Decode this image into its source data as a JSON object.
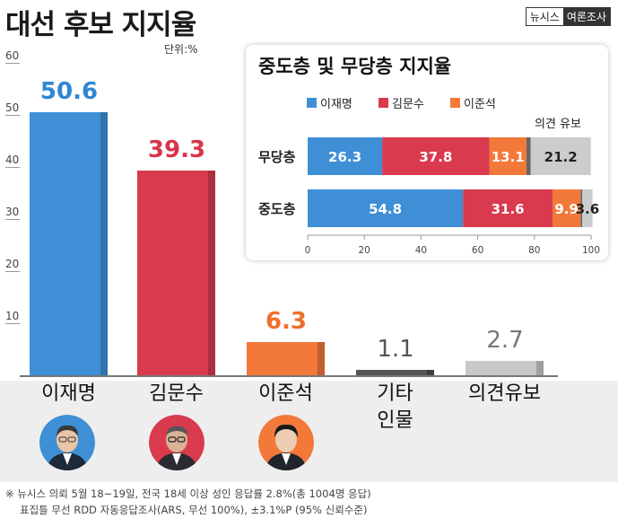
{
  "header": {
    "title": "대선 후보 지지율",
    "logo_left": "뉴시스",
    "logo_right": "여론조사",
    "unit": "단위:%"
  },
  "chart_data": [
    {
      "type": "bar",
      "categories": [
        "이재명",
        "김문수",
        "이준석",
        "기타 인물",
        "의견유보"
      ],
      "category_lines": [
        [
          "이재명"
        ],
        [
          "김문수"
        ],
        [
          "이준석"
        ],
        [
          "기타",
          "인물"
        ],
        [
          "의견유보"
        ]
      ],
      "values": [
        50.6,
        39.3,
        6.3,
        1.1,
        2.7
      ],
      "value_labels": [
        "50.6",
        "39.3",
        "6.3",
        "1.1",
        "2.7"
      ],
      "colors": [
        "#3e8fd6",
        "#d93a4e",
        "#f2793a",
        "#555555",
        "#c8c8c8"
      ],
      "label_colors": [
        "#2f86d2",
        "#d7364a",
        "#ef6f2e",
        "#555555",
        "#777777"
      ],
      "yticks": [
        10,
        20,
        30,
        40,
        50,
        60
      ],
      "ylim": [
        0,
        60
      ],
      "grid": false
    },
    {
      "type": "bar",
      "orientation": "horizontal",
      "stacked": true,
      "title": "중도층 및 무당층 지지율",
      "categories": [
        "무당층",
        "중도층"
      ],
      "series": [
        {
          "name": "이재명",
          "color": "#3e8fd6",
          "values": [
            26.3,
            54.8
          ]
        },
        {
          "name": "김문수",
          "color": "#d93a4e",
          "values": [
            37.8,
            31.6
          ]
        },
        {
          "name": "이준석",
          "color": "#f2793a",
          "values": [
            13.1,
            9.9
          ]
        },
        {
          "name": "",
          "color": "#666666",
          "values": [
            1.5,
            0.6
          ]
        },
        {
          "name": "의견 유보",
          "color": "#cccccc",
          "values": [
            21.2,
            3.6
          ]
        }
      ],
      "undecided_label": "의견 유보",
      "xticks": [
        0,
        20,
        40,
        60,
        80,
        100
      ],
      "xlim": [
        0,
        100
      ]
    }
  ],
  "footnotes": [
    "※ 뉴시스 의뢰 5월 18~19일, 전국 18세 이상 성인 응답률 2.8%(총 1004명 응답)",
    "표집틀 무선 RDD  자동응답조사(ARS, 무선 100%), ±3.1%P (95% 신뢰수준)"
  ]
}
